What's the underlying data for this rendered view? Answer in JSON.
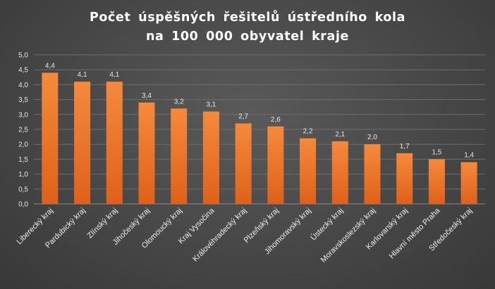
{
  "chart_data": {
    "type": "bar",
    "title_lines": [
      "Počet úspěšných řešitelů ústředního kola",
      "na 100 000 obyvatel kraje"
    ],
    "categories": [
      "Liberecký kraj",
      "Pardubický kraj",
      "Zlínský kraj",
      "Jihočeský kraj",
      "Olomoucký kraj",
      "Kraj Vysočina",
      "Královéhradecký kraj",
      "Plzeňský kraj",
      "Jihomoravský kraj",
      "Ústecký kraj",
      "Moravskoslezský kraj",
      "Karlovarský kraj",
      "Hlavní město Praha",
      "Středočeský kraj"
    ],
    "values": [
      4.4,
      4.1,
      4.1,
      3.4,
      3.2,
      3.1,
      2.7,
      2.6,
      2.2,
      2.1,
      2.0,
      1.7,
      1.5,
      1.4
    ],
    "value_labels": [
      "4,4",
      "4,1",
      "4,1",
      "3,4",
      "3,2",
      "3,1",
      "2,7",
      "2,6",
      "2,2",
      "2,1",
      "2,0",
      "1,7",
      "1,5",
      "1,4"
    ],
    "y_ticks": [
      0,
      0.5,
      1.0,
      1.5,
      2.0,
      2.5,
      3.0,
      3.5,
      4.0,
      4.5,
      5.0
    ],
    "y_tick_labels": [
      "0,0",
      "0,5",
      "1,0",
      "1,5",
      "2,0",
      "2,5",
      "3,0",
      "3,5",
      "4,0",
      "4,5",
      "5,0"
    ],
    "ylim": [
      0,
      5
    ],
    "grid": true,
    "legend": false,
    "bar_color_top": "#f58a3c",
    "bar_color_bottom": "#e0601a"
  }
}
